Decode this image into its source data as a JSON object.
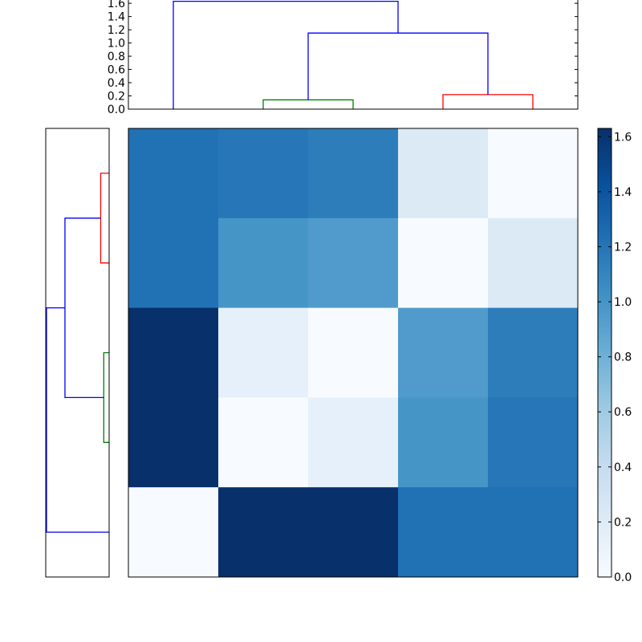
{
  "chart_data": [
    {
      "type": "dendrogram",
      "orientation": "top",
      "ylim": [
        0,
        1.65
      ],
      "yticks": [
        0.0,
        0.2,
        0.4,
        0.6,
        0.8,
        1.0,
        1.2,
        1.4,
        1.6
      ],
      "ytick_labels": [
        "0.0",
        "0.2",
        "0.4",
        "0.6",
        "0.8",
        "1.0",
        "1.2",
        "1.4",
        "1.6"
      ],
      "leaf_count": 5,
      "links": [
        {
          "left": 1,
          "right": 2,
          "height": 0.14,
          "left_base": 0,
          "right_base": 0,
          "color": "#008000"
        },
        {
          "left": 3,
          "right": 4,
          "height": 0.22,
          "left_base": 0,
          "right_base": 0,
          "color": "#ff0000"
        },
        {
          "left": 1.5,
          "right": 3.5,
          "height": 1.15,
          "left_base": 0.14,
          "right_base": 0.22,
          "color": "#0000ff"
        },
        {
          "left": 0,
          "right": 2.5,
          "height": 1.63,
          "left_base": 0,
          "right_base": 1.15,
          "color": "#0000ff"
        }
      ]
    },
    {
      "type": "dendrogram",
      "orientation": "left",
      "xlim": [
        0,
        1.65
      ],
      "leaf_count": 5,
      "links": [
        {
          "left": 0,
          "right": 1,
          "height": 0.22,
          "left_base": 0,
          "right_base": 0,
          "color": "#ff0000"
        },
        {
          "left": 2,
          "right": 3,
          "height": 0.14,
          "left_base": 0,
          "right_base": 0,
          "color": "#008000"
        },
        {
          "left": 0.5,
          "right": 2.5,
          "height": 1.15,
          "left_base": 0.22,
          "right_base": 0.14,
          "color": "#0000ff"
        },
        {
          "left": 1.5,
          "right": 4,
          "height": 1.63,
          "left_base": 1.15,
          "right_base": 0,
          "color": "#0000ff"
        }
      ]
    },
    {
      "type": "heatmap",
      "colormap": "Blues",
      "vmin": 0,
      "vmax": 1.63,
      "values": [
        [
          1.22,
          1.19,
          1.15,
          0.22,
          0.0
        ],
        [
          1.22,
          1.0,
          0.95,
          0.0,
          0.22
        ],
        [
          1.63,
          0.14,
          0.0,
          0.95,
          1.15
        ],
        [
          1.63,
          0.0,
          0.14,
          1.0,
          1.19
        ],
        [
          0.0,
          1.63,
          1.63,
          1.22,
          1.22
        ]
      ],
      "colorbar": {
        "ticks": [
          0.0,
          0.2,
          0.4,
          0.6,
          0.8,
          1.0,
          1.2,
          1.4,
          1.6
        ],
        "tick_labels": [
          "0.0",
          "0.2",
          "0.4",
          "0.6",
          "0.8",
          "1.0",
          "1.2",
          "1.4",
          "1.6"
        ]
      }
    }
  ]
}
